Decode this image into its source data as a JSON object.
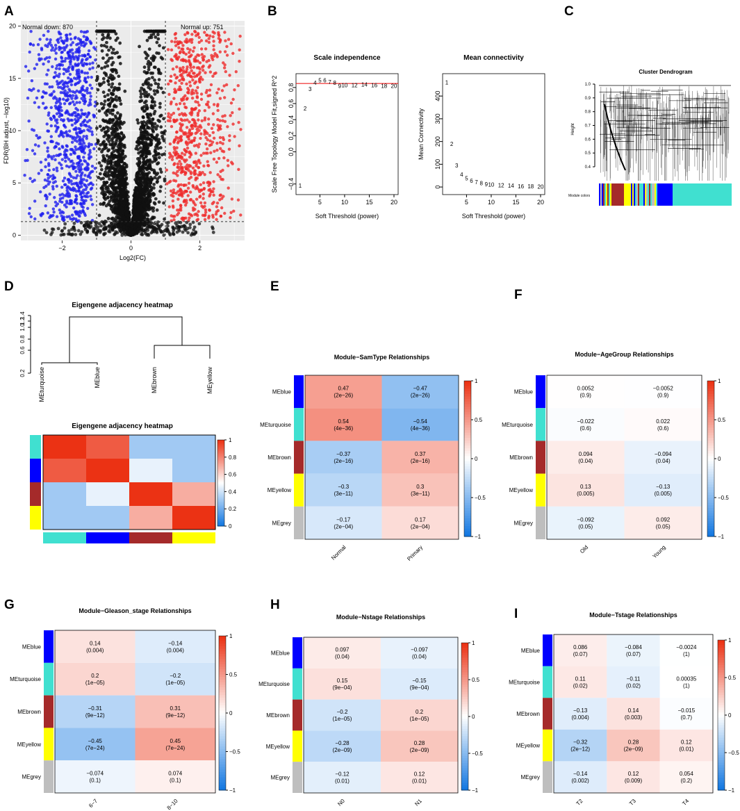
{
  "panel_letters": [
    "A",
    "B",
    "C",
    "D",
    "E",
    "F",
    "G",
    "H",
    "I"
  ],
  "colors": {
    "down": "#1e1eef",
    "up": "#ef2a2a",
    "ns": "#111111",
    "turquoise": "#40e0d0",
    "blue": "#0000ff",
    "brown": "#a52a2a",
    "yellow": "#ffff00",
    "grey": "#bebebe"
  },
  "chart_data": [
    {
      "id": "A",
      "type": "scatter",
      "xlabel": "Log2(FC)",
      "ylabel": "FDR(BH adjust, −log10)",
      "xticks": [
        "−2",
        "0",
        "2"
      ],
      "xtick_values": [
        -2,
        0,
        2
      ],
      "yticks": [
        "0",
        "5",
        "10",
        "15",
        "20"
      ],
      "ytick_values": [
        0,
        5,
        10,
        15,
        20
      ],
      "xlim": [
        -3.2,
        3.3
      ],
      "ylim": [
        -0.5,
        20.5
      ],
      "vlines": [
        -1,
        1
      ],
      "hline": 1.3,
      "annotations": {
        "left": "Normal down: 870",
        "right": "Normal up: 751"
      },
      "counts": {
        "down": 870,
        "up": 751
      }
    },
    {
      "id": "B1",
      "type": "scatter",
      "title": "Scale independence",
      "xlabel": "Soft Threshold (power)",
      "ylabel": "Scale Free Topology Model Fit,signed R^2",
      "xticks": [
        "5",
        "10",
        "15",
        "20"
      ],
      "yticks": [
        "−0.4",
        "0.0",
        "0.2",
        "0.4",
        "0.6",
        "0.8"
      ],
      "powers": [
        1,
        2,
        3,
        4,
        5,
        6,
        7,
        8,
        9,
        10,
        12,
        14,
        16,
        18,
        20
      ],
      "values": [
        -0.42,
        0.54,
        0.78,
        0.86,
        0.89,
        0.89,
        0.87,
        0.86,
        0.82,
        0.83,
        0.83,
        0.84,
        0.83,
        0.82,
        0.82
      ],
      "hline": 0.85
    },
    {
      "id": "B2",
      "type": "scatter",
      "title": "Mean connectivity",
      "xlabel": "Soft Threshold (power)",
      "ylabel": "Mean Connectivity",
      "xticks": [
        "5",
        "10",
        "15",
        "20"
      ],
      "yticks": [
        "0",
        "100",
        "200",
        "300",
        "400"
      ],
      "powers": [
        1,
        2,
        3,
        4,
        5,
        6,
        7,
        8,
        9,
        10,
        12,
        14,
        16,
        18,
        20
      ],
      "values": [
        460,
        190,
        95,
        55,
        38,
        28,
        22,
        17,
        13,
        11,
        8,
        6,
        4,
        3,
        2
      ]
    },
    {
      "id": "C",
      "type": "dendrogram",
      "title": "Cluster Dendrogram",
      "ylabel": "Height",
      "yticks": [
        "0.4",
        "0.5",
        "0.6",
        "0.7",
        "0.8",
        "0.9",
        "1.0"
      ],
      "color_bar_label": "Module colors"
    },
    {
      "id": "D1",
      "type": "dendrogram",
      "title": "Eigengene adjacency heatmap",
      "yticks": [
        "0.2",
        "0.6",
        "0.8",
        "1.0",
        "1.2",
        "1.4"
      ],
      "leaves": [
        "MEturquoise",
        "MEblue",
        "MEbrown",
        "MEyellow"
      ]
    },
    {
      "id": "D2",
      "type": "heatmap",
      "title": "Eigengene adjacency heatmap",
      "rows": [
        "turquoise",
        "blue",
        "brown",
        "yellow"
      ],
      "values": [
        [
          1.0,
          0.9,
          0.3,
          0.3
        ],
        [
          0.9,
          1.0,
          0.45,
          0.3
        ],
        [
          0.3,
          0.45,
          1.0,
          0.7
        ],
        [
          0.3,
          0.3,
          0.7,
          1.0
        ]
      ],
      "legend_ticks": [
        "0",
        "0.2",
        "0.4",
        "0.6",
        "0.8",
        "1"
      ],
      "range": [
        0,
        1
      ]
    },
    {
      "id": "E",
      "type": "heatmap",
      "title": "Module−SamType Relationships",
      "row_labels": [
        "MEblue",
        "MEturquoise",
        "MEbrown",
        "MEyellow",
        "MEgrey"
      ],
      "row_colors": [
        "blue",
        "turquoise",
        "brown",
        "yellow",
        "grey"
      ],
      "col_labels": [
        "Normal",
        "Primary"
      ],
      "values": [
        [
          0.47,
          -0.47
        ],
        [
          0.54,
          -0.54
        ],
        [
          -0.37,
          0.37
        ],
        [
          -0.3,
          0.3
        ],
        [
          -0.17,
          0.17
        ]
      ],
      "text": [
        [
          "0.47",
          "−0.47"
        ],
        [
          "0.54",
          "−0.54"
        ],
        [
          "−0.37",
          "0.37"
        ],
        [
          "−0.3",
          "0.3"
        ],
        [
          "−0.17",
          "0.17"
        ]
      ],
      "pvals": [
        [
          "(2e−26)",
          "(2e−26)"
        ],
        [
          "(4e−36)",
          "(4e−36)"
        ],
        [
          "(2e−16)",
          "(2e−16)"
        ],
        [
          "(3e−11)",
          "(3e−11)"
        ],
        [
          "(2e−04)",
          "(2e−04)"
        ]
      ],
      "legend_ticks": [
        "1",
        "0.5",
        "0",
        "−0.5",
        "−1"
      ]
    },
    {
      "id": "F",
      "type": "heatmap",
      "title": "Module−AgeGroup Relationships",
      "row_labels": [
        "MEblue",
        "MEturquoise",
        "MEbrown",
        "MEyellow",
        "MEgrey"
      ],
      "row_colors": [
        "blue",
        "turquoise",
        "brown",
        "yellow",
        "grey"
      ],
      "col_labels": [
        "Old",
        "Young"
      ],
      "values": [
        [
          0.0052,
          -0.0052
        ],
        [
          -0.022,
          0.022
        ],
        [
          0.094,
          -0.094
        ],
        [
          0.13,
          -0.13
        ],
        [
          -0.092,
          0.092
        ]
      ],
      "text": [
        [
          "0.0052",
          "−0.0052"
        ],
        [
          "−0.022",
          "0.022"
        ],
        [
          "0.094",
          "−0.094"
        ],
        [
          "0.13",
          "−0.13"
        ],
        [
          "−0.092",
          "0.092"
        ]
      ],
      "pvals": [
        [
          "(0.9)",
          "(0.9)"
        ],
        [
          "(0.6)",
          "(0.6)"
        ],
        [
          "(0.04)",
          "(0.04)"
        ],
        [
          "(0.005)",
          "(0.005)"
        ],
        [
          "(0.05)",
          "(0.05)"
        ]
      ],
      "legend_ticks": [
        "1",
        "0.5",
        "0",
        "−0.5",
        "−1"
      ]
    },
    {
      "id": "G",
      "type": "heatmap",
      "title": "Module−Gleason_stage Relationships",
      "row_labels": [
        "MEblue",
        "MEturquoise",
        "MEbrown",
        "MEyellow",
        "MEgrey"
      ],
      "row_colors": [
        "blue",
        "turquoise",
        "brown",
        "yellow",
        "grey"
      ],
      "col_labels": [
        "6−7",
        "8−10"
      ],
      "values": [
        [
          0.14,
          -0.14
        ],
        [
          0.2,
          -0.2
        ],
        [
          -0.31,
          0.31
        ],
        [
          -0.45,
          0.45
        ],
        [
          -0.074,
          0.074
        ]
      ],
      "text": [
        [
          "0.14",
          "−0.14"
        ],
        [
          "0.2",
          "−0.2"
        ],
        [
          "−0.31",
          "0.31"
        ],
        [
          "−0.45",
          "0.45"
        ],
        [
          "−0.074",
          "0.074"
        ]
      ],
      "pvals": [
        [
          "(0.004)",
          "(0.004)"
        ],
        [
          "(1e−05)",
          "(1e−05)"
        ],
        [
          "(9e−12)",
          "(9e−12)"
        ],
        [
          "(7e−24)",
          "(7e−24)"
        ],
        [
          "(0.1)",
          "(0.1)"
        ]
      ],
      "legend_ticks": [
        "1",
        "0.5",
        "0",
        "−0.5",
        "−1"
      ]
    },
    {
      "id": "H",
      "type": "heatmap",
      "title": "Module−Nstage Relationships",
      "row_labels": [
        "MEblue",
        "MEturquoise",
        "MEbrown",
        "MEyellow",
        "MEgrey"
      ],
      "row_colors": [
        "blue",
        "turquoise",
        "brown",
        "yellow",
        "grey"
      ],
      "col_labels": [
        "N0",
        "N1"
      ],
      "values": [
        [
          0.097,
          -0.097
        ],
        [
          0.15,
          -0.15
        ],
        [
          -0.2,
          0.2
        ],
        [
          -0.28,
          0.28
        ],
        [
          -0.12,
          0.12
        ]
      ],
      "text": [
        [
          "0.097",
          "−0.097"
        ],
        [
          "0.15",
          "−0.15"
        ],
        [
          "−0.2",
          "0.2"
        ],
        [
          "−0.28",
          "0.28"
        ],
        [
          "−0.12",
          "0.12"
        ]
      ],
      "pvals": [
        [
          "(0.04)",
          "(0.04)"
        ],
        [
          "(9e−04)",
          "(9e−04)"
        ],
        [
          "(1e−05)",
          "(1e−05)"
        ],
        [
          "(2e−09)",
          "(2e−09)"
        ],
        [
          "(0.01)",
          "(0.01)"
        ]
      ],
      "legend_ticks": [
        "1",
        "0.5",
        "0",
        "−0.5",
        "−1"
      ]
    },
    {
      "id": "I",
      "type": "heatmap",
      "title": "Module−Tstage Relationships",
      "row_labels": [
        "MEblue",
        "MEturquoise",
        "MEbrown",
        "MEyellow",
        "MEgrey"
      ],
      "row_colors": [
        "blue",
        "turquoise",
        "brown",
        "yellow",
        "grey"
      ],
      "col_labels": [
        "T2",
        "T3",
        "T4"
      ],
      "values": [
        [
          0.086,
          -0.084,
          -0.0024
        ],
        [
          0.11,
          -0.11,
          0.00035
        ],
        [
          -0.13,
          0.14,
          -0.015
        ],
        [
          -0.32,
          0.28,
          0.12
        ],
        [
          -0.14,
          0.12,
          0.054
        ]
      ],
      "text": [
        [
          "0.086",
          "−0.084",
          "−0.0024"
        ],
        [
          "0.11",
          "−0.11",
          "0.00035"
        ],
        [
          "−0.13",
          "0.14",
          "−0.015"
        ],
        [
          "−0.32",
          "0.28",
          "0.12"
        ],
        [
          "−0.14",
          "0.12",
          "0.054"
        ]
      ],
      "pvals": [
        [
          "(0.07)",
          "(0.07)",
          "(1)"
        ],
        [
          "(0.02)",
          "(0.02)",
          "(1)"
        ],
        [
          "(0.004)",
          "(0.003)",
          "(0.7)"
        ],
        [
          "(2e−12)",
          "(2e−09)",
          "(0.01)"
        ],
        [
          "(0.002)",
          "(0.009)",
          "(0.2)"
        ]
      ],
      "legend_ticks": [
        "1",
        "0.5",
        "0",
        "−0.5",
        "−1"
      ]
    }
  ]
}
